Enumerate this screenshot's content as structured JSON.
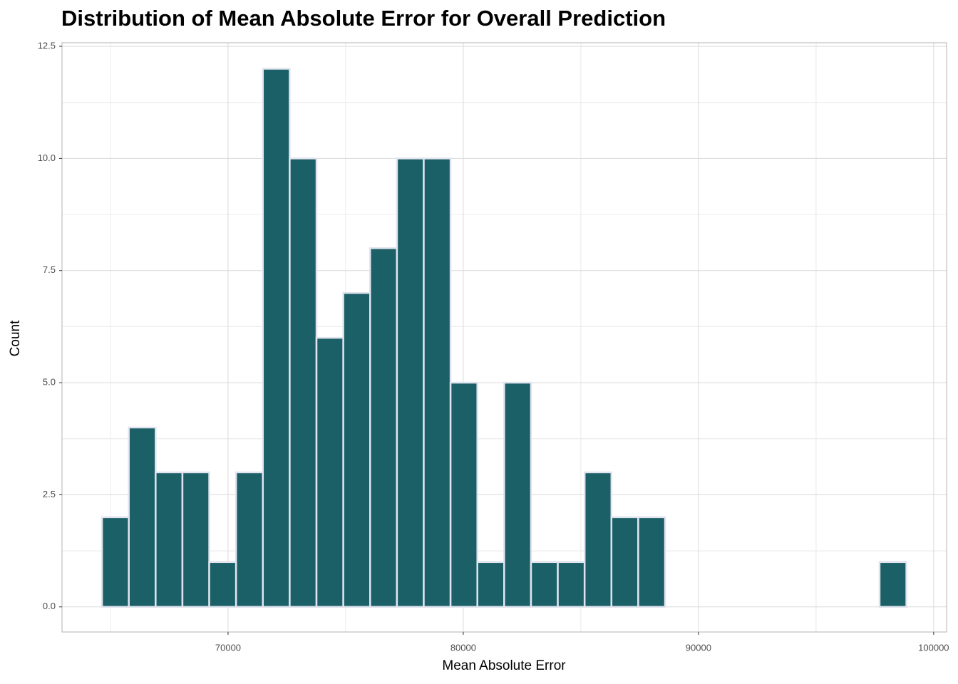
{
  "chart_data": {
    "type": "histogram",
    "title": "Distribution of Mean Absolute Error for Overall Prediction",
    "x_label": "Mean Absolute Error",
    "y_label": "Count",
    "bins": [
      64640,
      65780,
      66920,
      68060,
      69200,
      70340,
      71480,
      72620,
      73760,
      74900,
      76040,
      77180,
      78320,
      79460,
      80600,
      81740,
      82880,
      84020,
      85160,
      86300,
      87440,
      88580,
      89720,
      90860,
      92000,
      93140,
      94280,
      95420,
      96560,
      97700,
      98840
    ],
    "values": [
      2,
      4,
      3,
      3,
      1,
      3,
      12,
      10,
      6,
      7,
      8,
      10,
      10,
      5,
      1,
      5,
      1,
      1,
      3,
      2,
      2,
      0,
      0,
      0,
      0,
      0,
      0,
      0,
      0,
      1
    ],
    "color": "#1a6066",
    "edge_color": "#e1e4ef",
    "xlim": [
      62940,
      100550
    ],
    "ylim": [
      -0.56,
      12.58
    ],
    "xticks": [
      70000,
      80000,
      90000,
      100000
    ],
    "yticks": [
      {
        "value": 0,
        "label": "0.0"
      },
      2.5,
      {
        "value": 5,
        "label": "5.0"
      },
      7.5,
      {
        "value": 10,
        "label": "10.0"
      },
      12.5
    ],
    "grid": true
  }
}
